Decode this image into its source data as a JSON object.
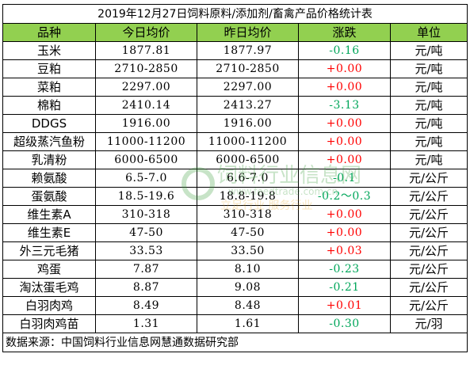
{
  "title": "2019年12月27日饲料原料/添加剂/畜禽产品价格统计表",
  "headers": [
    "品种",
    "今日均价",
    "昨日均价",
    "涨跌",
    "单位"
  ],
  "rows": [
    {
      "name": "玉米",
      "today": "1877.81",
      "yesterday": "1877.97",
      "change": "-0.16",
      "dir": "down",
      "unit": "元/吨"
    },
    {
      "name": "豆粕",
      "today": "2710-2850",
      "yesterday": "2710-2850",
      "change": "+0.00",
      "dir": "up",
      "unit": "元/吨"
    },
    {
      "name": "菜粕",
      "today": "2297.00",
      "yesterday": "2297.00",
      "change": "+0.00",
      "dir": "up",
      "unit": "元/吨"
    },
    {
      "name": "棉粕",
      "today": "2410.14",
      "yesterday": "2413.27",
      "change": "-3.13",
      "dir": "down",
      "unit": "元/吨"
    },
    {
      "name": "DDGS",
      "today": "1916.00",
      "yesterday": "1916.00",
      "change": "+0.00",
      "dir": "up",
      "unit": "元/吨"
    },
    {
      "name": "超级蒸汽鱼粉",
      "today": "11000-11200",
      "yesterday": "11000-11200",
      "change": "+0.00",
      "dir": "up",
      "unit": "元/吨"
    },
    {
      "name": "乳清粉",
      "today": "6000-6500",
      "yesterday": "6000-6500",
      "change": "+0.00",
      "dir": "up",
      "unit": "元/吨"
    },
    {
      "name": "赖氨酸",
      "today": "6.5-7.0",
      "yesterday": "6.6-7.0",
      "change": "-0.1",
      "dir": "down",
      "unit": "元/公斤"
    },
    {
      "name": "蛋氨酸",
      "today": "18.5-19.6",
      "yesterday": "18.8-19.8",
      "change": "-0.2～0.3",
      "dir": "down",
      "unit": "元/公斤"
    },
    {
      "name": "维生素A",
      "today": "310-318",
      "yesterday": "310-318",
      "change": "+0.00",
      "dir": "up",
      "unit": "元/公斤"
    },
    {
      "name": "维生素E",
      "today": "47-50",
      "yesterday": "47-50",
      "change": "+0.00",
      "dir": "up",
      "unit": "元/公斤"
    },
    {
      "name": "外三元毛猪",
      "today": "33.53",
      "yesterday": "33.50",
      "change": "+0.03",
      "dir": "up",
      "unit": "元/公斤"
    },
    {
      "name": "鸡蛋",
      "today": "7.87",
      "yesterday": "8.10",
      "change": "-0.23",
      "dir": "down",
      "unit": "元/公斤"
    },
    {
      "name": "淘汰蛋毛鸡",
      "today": "8.87",
      "yesterday": "9.08",
      "change": "-0.21",
      "dir": "down",
      "unit": "元/公斤"
    },
    {
      "name": "白羽肉鸡",
      "today": "8.49",
      "yesterday": "8.48",
      "change": "+0.01",
      "dir": "up",
      "unit": "元/公斤"
    },
    {
      "name": "白羽肉鸡苗",
      "today": "1.31",
      "yesterday": "1.61",
      "change": "-0.30",
      "dir": "down",
      "unit": "元/羽"
    }
  ],
  "source": "数据来源：中国饲料行业信息网慧通数据研究部",
  "watermark": {
    "line1": "饲料行业信息网",
    "line2": "www.feedtrade.com.cn",
    "line3": "立足行业 服务行业"
  },
  "colors": {
    "header_bg": "#92d050",
    "up": "#ff0000",
    "down": "#00a65a"
  }
}
